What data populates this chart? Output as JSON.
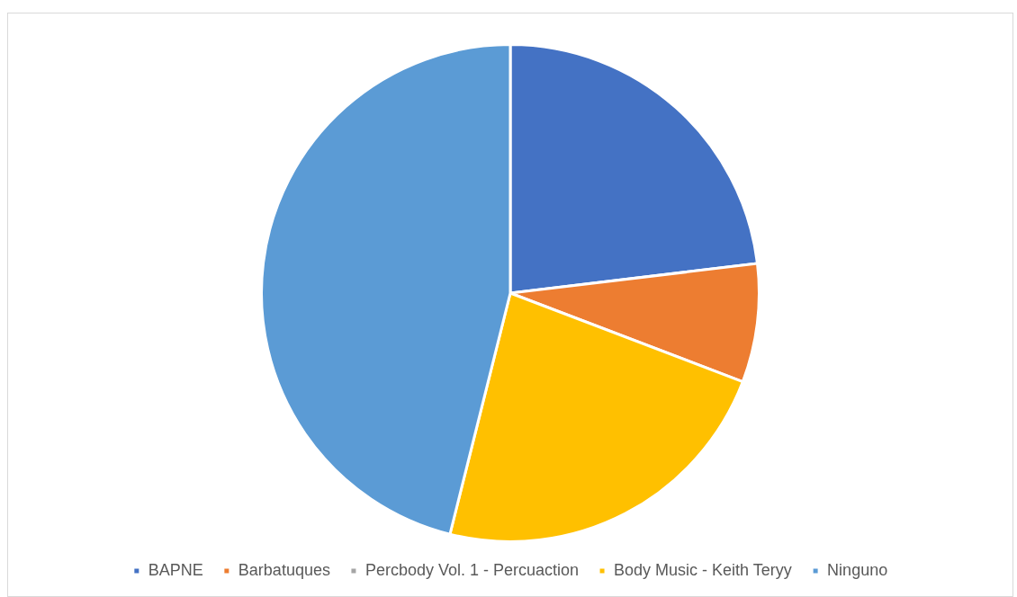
{
  "chart_data": {
    "type": "pie",
    "categories": [
      "BAPNE",
      "Barbatuques",
      "Percbody Vol. 1 - Percuaction",
      "Body Music - Keith Teryy",
      "Ninguno"
    ],
    "values": [
      23.1,
      7.7,
      0,
      23.1,
      46.1
    ],
    "colors": [
      "#4472c4",
      "#ed7d31",
      "#a5a5a5",
      "#ffc000",
      "#5b9bd5"
    ],
    "legend": "bottom"
  }
}
